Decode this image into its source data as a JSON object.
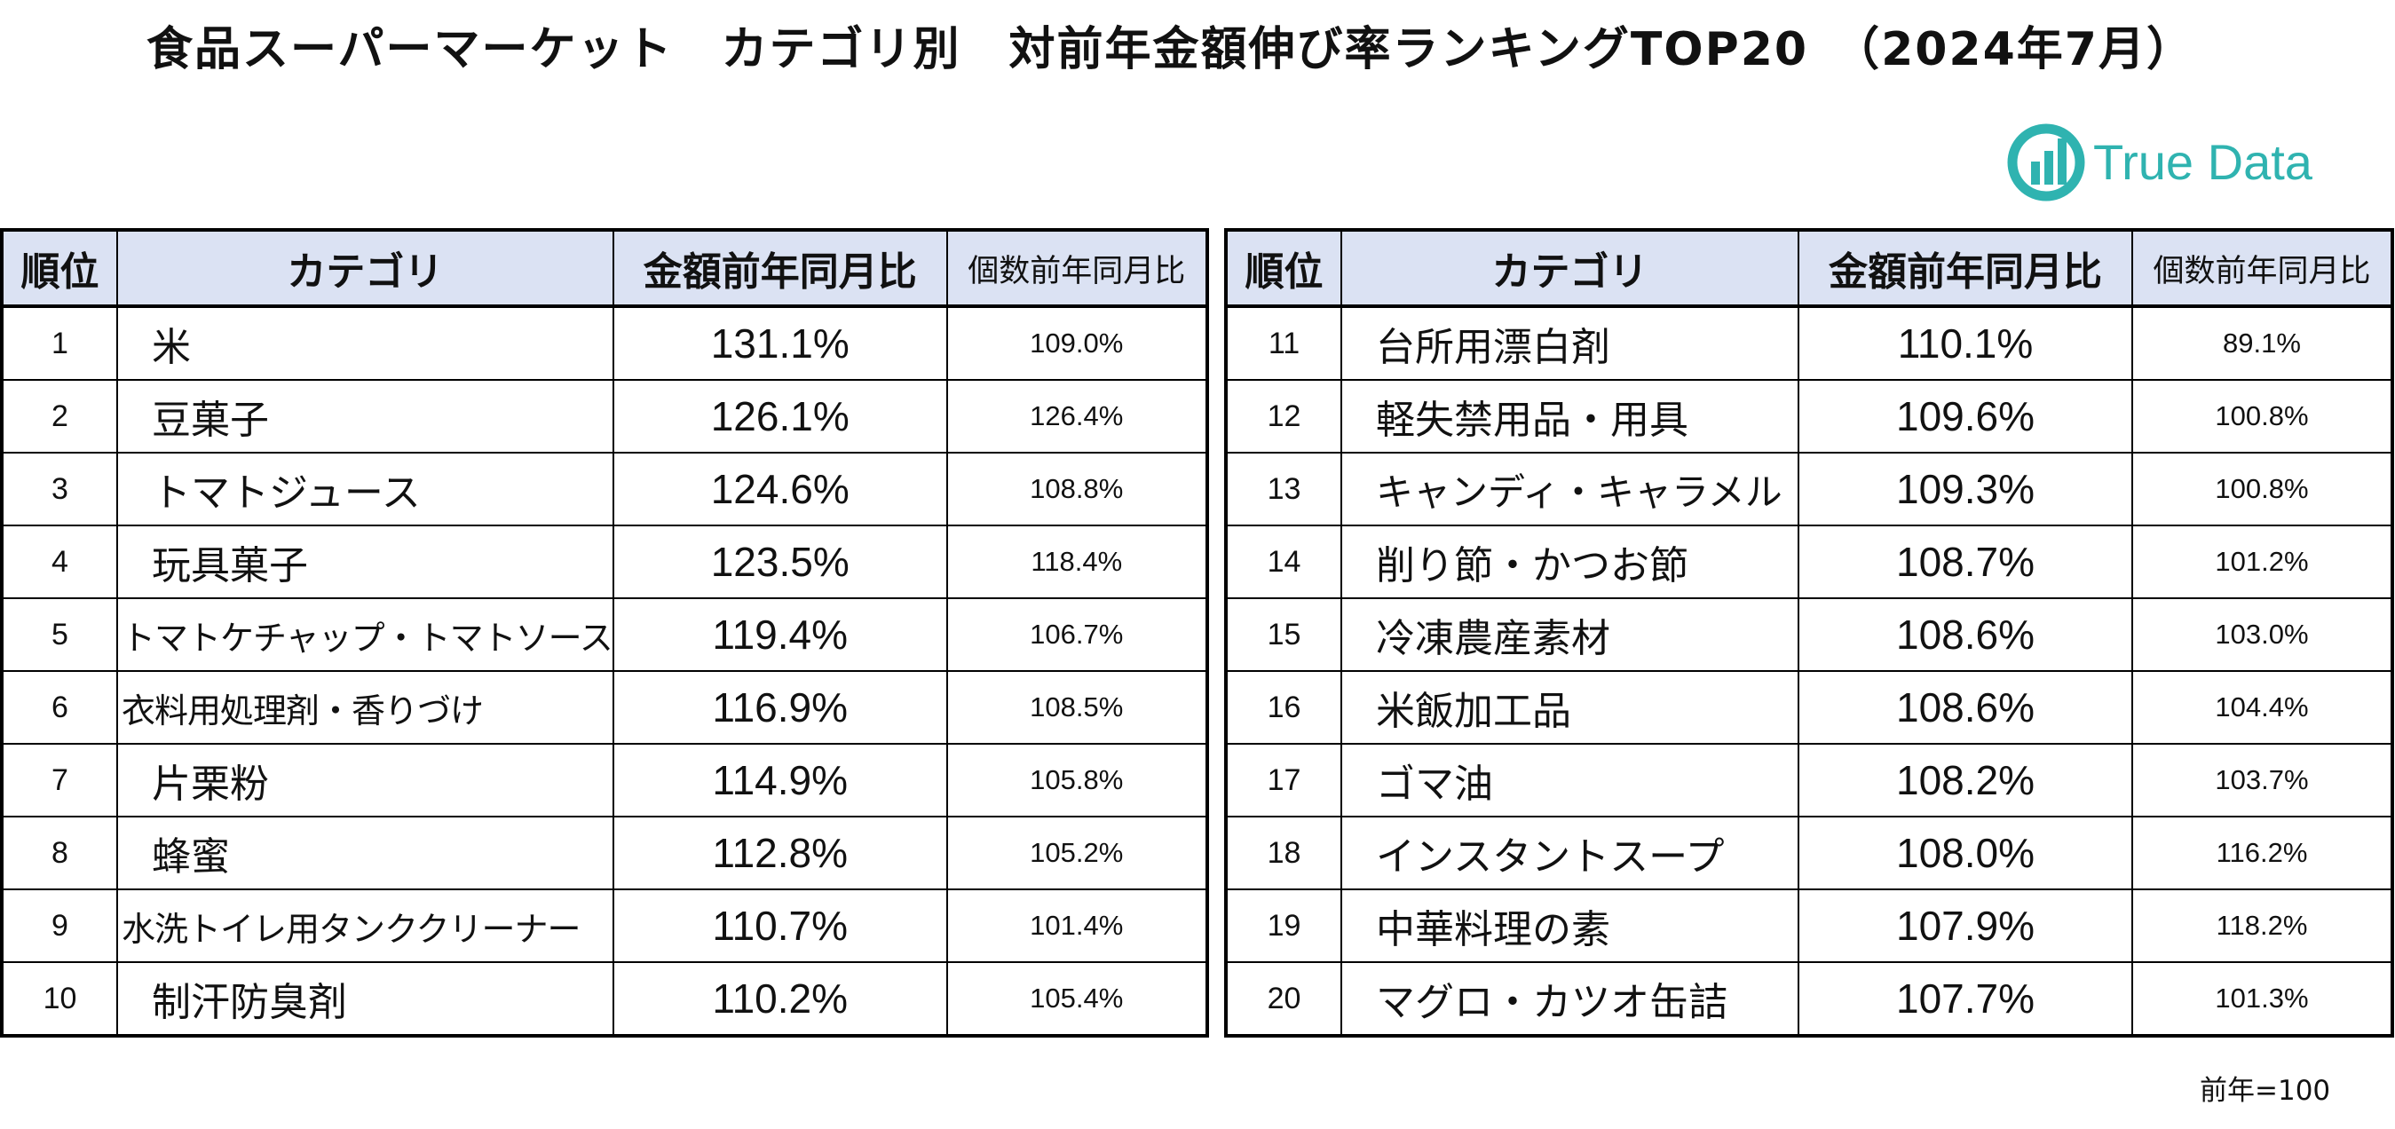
{
  "title": "食品スーパーマーケット　カテゴリ別　対前年金額伸び率ランキングTOP20　（2024年7月）",
  "logo": {
    "text": "True Data",
    "color": "#2fb3b0",
    "icon": "truedata-logo-icon"
  },
  "headers": {
    "rank": "順位",
    "category": "カテゴリ",
    "amount_yoy": "金額前年同月比",
    "quantity_yoy": "個数前年同月比"
  },
  "header_bg": "#dbe2f3",
  "left_rows": [
    {
      "rank": "1",
      "category": "米",
      "amount": "131.1%",
      "quantity": "109.0%"
    },
    {
      "rank": "2",
      "category": "豆菓子",
      "amount": "126.1%",
      "quantity": "126.4%"
    },
    {
      "rank": "3",
      "category": "トマトジュース",
      "amount": "124.6%",
      "quantity": "108.8%"
    },
    {
      "rank": "4",
      "category": "玩具菓子",
      "amount": "123.5%",
      "quantity": "118.4%"
    },
    {
      "rank": "5",
      "category": "トマトケチャップ・トマトソース",
      "amount": "119.4%",
      "quantity": "106.7%"
    },
    {
      "rank": "6",
      "category": "衣料用処理剤・香りづけ",
      "amount": "116.9%",
      "quantity": "108.5%"
    },
    {
      "rank": "7",
      "category": "片栗粉",
      "amount": "114.9%",
      "quantity": "105.8%"
    },
    {
      "rank": "8",
      "category": "蜂蜜",
      "amount": "112.8%",
      "quantity": "105.2%"
    },
    {
      "rank": "9",
      "category": "水洗トイレ用タンククリーナー",
      "amount": "110.7%",
      "quantity": "101.4%"
    },
    {
      "rank": "10",
      "category": "制汗防臭剤",
      "amount": "110.2%",
      "quantity": "105.4%"
    }
  ],
  "right_rows": [
    {
      "rank": "11",
      "category": "台所用漂白剤",
      "amount": "110.1%",
      "quantity": "89.1%"
    },
    {
      "rank": "12",
      "category": "軽失禁用品・用具",
      "amount": "109.6%",
      "quantity": "100.8%"
    },
    {
      "rank": "13",
      "category": "キャンディ・キャラメル",
      "amount": "109.3%",
      "quantity": "100.8%"
    },
    {
      "rank": "14",
      "category": "削り節・かつお節",
      "amount": "108.7%",
      "quantity": "101.2%"
    },
    {
      "rank": "15",
      "category": "冷凍農産素材",
      "amount": "108.6%",
      "quantity": "103.0%"
    },
    {
      "rank": "16",
      "category": "米飯加工品",
      "amount": "108.6%",
      "quantity": "104.4%"
    },
    {
      "rank": "17",
      "category": "ゴマ油",
      "amount": "108.2%",
      "quantity": "103.7%"
    },
    {
      "rank": "18",
      "category": "インスタントスープ",
      "amount": "108.0%",
      "quantity": "116.2%"
    },
    {
      "rank": "19",
      "category": "中華料理の素",
      "amount": "107.9%",
      "quantity": "118.2%"
    },
    {
      "rank": "20",
      "category": "マグロ・カツオ缶詰",
      "amount": "107.7%",
      "quantity": "101.3%"
    }
  ],
  "footnote": "前年=100"
}
